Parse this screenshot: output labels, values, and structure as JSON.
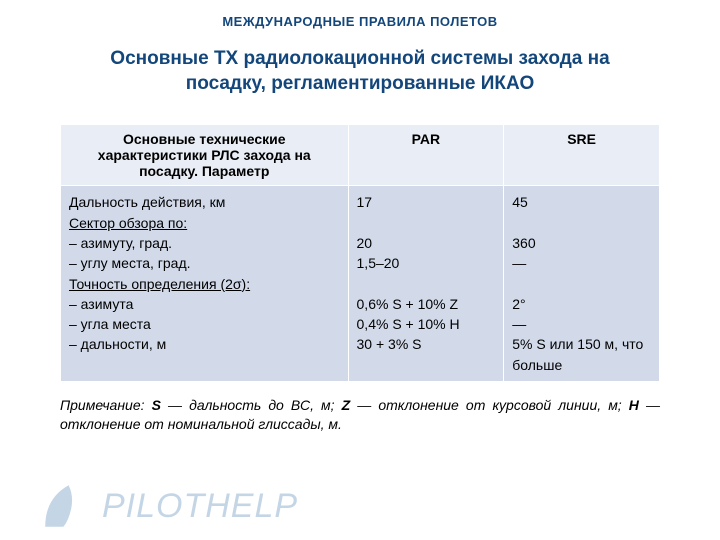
{
  "header": "МЕЖДУНАРОДНЫЕ ПРАВИЛА ПОЛЕТОВ",
  "title_line1": "Основные ТХ радиолокационной системы захода на",
  "title_line2": "посадку, регламентированные ИКАО",
  "table": {
    "columns": [
      "Основные технические характеристики РЛС захода на посадку. Параметр",
      "PAR",
      "SRE"
    ],
    "col_widths": [
      "48%",
      "26%",
      "26%"
    ],
    "header_bg": "#e9edf5",
    "cell_bg": "#d2daea",
    "border_color": "#ffffff",
    "param_lines": [
      {
        "text": "Дальность действия, км",
        "underline": false
      },
      {
        "text": "Сектор обзора по:",
        "underline": true
      },
      {
        "text": "– азимуту, град.",
        "underline": false
      },
      {
        "text": "– углу места, град.",
        "underline": false
      },
      {
        "text": "Точность определения (2σ):",
        "underline": true
      },
      {
        "text": "– азимута",
        "underline": false
      },
      {
        "text": "– угла места",
        "underline": false
      },
      {
        "text": "– дальности, м",
        "underline": false
      }
    ],
    "par_lines": [
      "17",
      " ",
      "20",
      "1,5–20",
      " ",
      "0,6% S + 10% Z",
      "0,4% S + 10% H",
      "30 + 3% S"
    ],
    "sre_lines": [
      "45",
      " ",
      "360",
      "—",
      " ",
      "2°",
      "—",
      "5% S или 150 м, что больше"
    ]
  },
  "note": {
    "prefix": "Примечание: ",
    "s_label": "S",
    "s_text": " — дальность до ВС, м; ",
    "z_label": "Z",
    "z_text": " — отклонение от курсовой линии, м; ",
    "h_label": "H",
    "h_text": " — отклонение от номинальной глиссады, м."
  },
  "watermark": {
    "text": "PILOTHELP",
    "fin_color": "#2f6aa8",
    "text_color": "#2f6aa8"
  }
}
